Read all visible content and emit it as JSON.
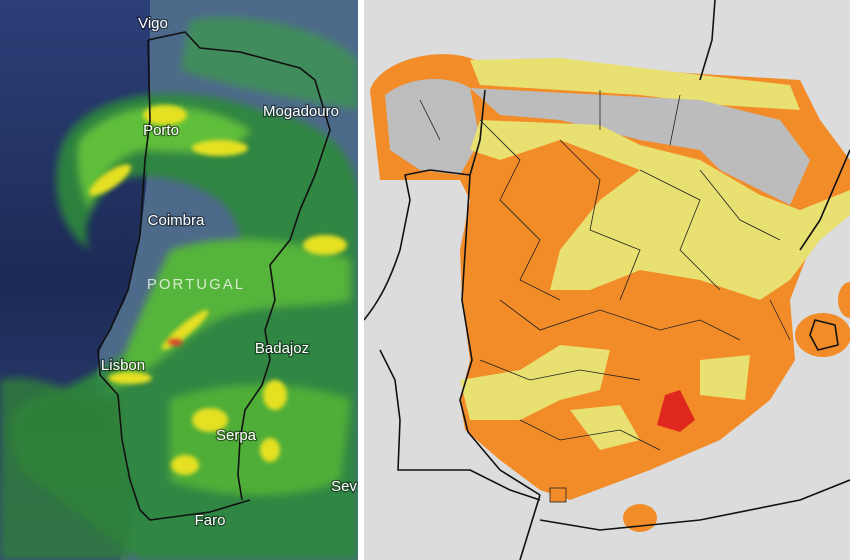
{
  "radar_map": {
    "place_labels": [
      "Vigo",
      "Porto",
      "Mogadouro",
      "Coimbra",
      "PORTUGAL",
      "Lisbon",
      "Badajoz",
      "Serpa",
      "Faro",
      "Sev"
    ]
  }
}
